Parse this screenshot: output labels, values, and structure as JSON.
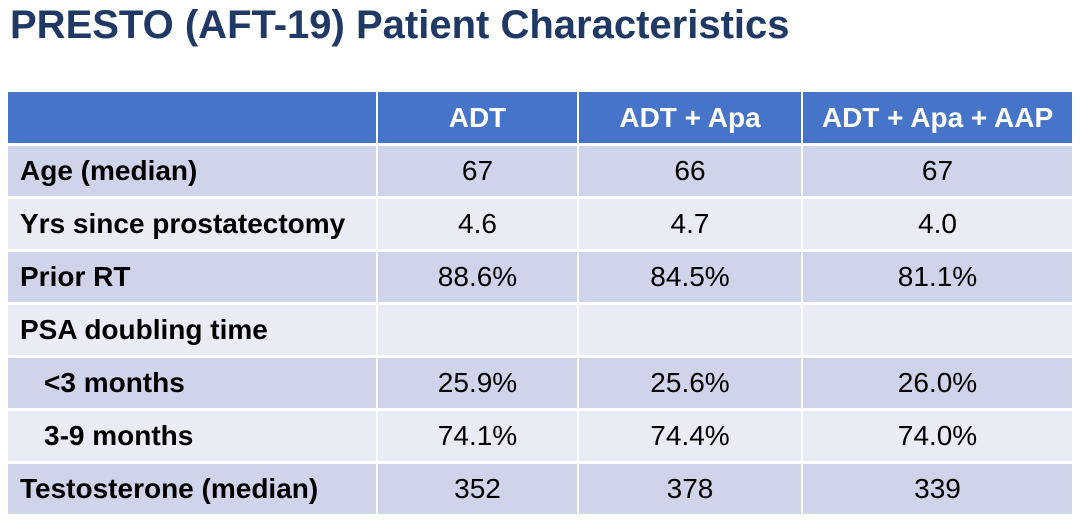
{
  "title": "PRESTO (AFT-19) Patient Characteristics",
  "colors": {
    "title_text": "#1F3864",
    "header_bg": "#4674C8",
    "header_text": "#FFFFFF",
    "row_band_dark": "#CFD4EA",
    "row_band_light": "#E9EBF5",
    "body_text": "#000000"
  },
  "table": {
    "columns": [
      "",
      "ADT",
      "ADT + Apa",
      "ADT + Apa + AAP"
    ],
    "rows": [
      {
        "label": "Age (median)",
        "indent": false,
        "values": [
          "67",
          "66",
          "67"
        ]
      },
      {
        "label": "Yrs since prostatectomy",
        "indent": false,
        "values": [
          "4.6",
          "4.7",
          "4.0"
        ]
      },
      {
        "label": "Prior RT",
        "indent": false,
        "values": [
          "88.6%",
          "84.5%",
          "81.1%"
        ]
      },
      {
        "label": "PSA doubling time",
        "indent": false,
        "values": [
          "",
          "",
          ""
        ]
      },
      {
        "label": "<3 months",
        "indent": true,
        "values": [
          "25.9%",
          "25.6%",
          "26.0%"
        ]
      },
      {
        "label": "3-9 months",
        "indent": true,
        "values": [
          "74.1%",
          "74.4%",
          "74.0%"
        ]
      },
      {
        "label": "Testosterone (median)",
        "indent": false,
        "values": [
          "352",
          "378",
          "339"
        ]
      }
    ]
  }
}
